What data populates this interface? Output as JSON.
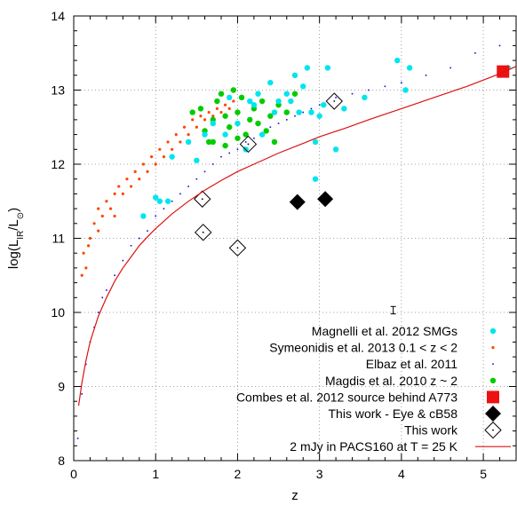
{
  "chart_data": {
    "type": "scatter",
    "xlabel": "z",
    "ylabel": {
      "main": "log(L",
      "sub": "IR",
      "mid": "/L",
      "sun": "⊙",
      "close": ")"
    },
    "xlim": [
      0,
      5.4
    ],
    "ylim": [
      8,
      14
    ],
    "x_ticks": [
      "0",
      "1",
      "2",
      "3",
      "4",
      "5"
    ],
    "y_ticks": [
      "8",
      "9",
      "10",
      "11",
      "12",
      "13",
      "14"
    ],
    "grid": true,
    "legend_position": "bottom-right",
    "series": [
      {
        "name": "Magnelli et al. 2012 SMGs",
        "marker": "circle",
        "color": "#00e5ee",
        "points": [
          [
            0.85,
            11.3
          ],
          [
            1.0,
            11.55
          ],
          [
            1.05,
            11.5
          ],
          [
            1.15,
            11.5
          ],
          [
            1.2,
            12.1
          ],
          [
            1.4,
            12.3
          ],
          [
            1.5,
            12.05
          ],
          [
            1.6,
            12.4
          ],
          [
            1.7,
            12.55
          ],
          [
            1.85,
            12.4
          ],
          [
            1.9,
            12.9
          ],
          [
            2.0,
            12.55
          ],
          [
            2.1,
            12.2
          ],
          [
            2.15,
            12.85
          ],
          [
            2.2,
            12.8
          ],
          [
            2.25,
            12.95
          ],
          [
            2.3,
            12.4
          ],
          [
            2.4,
            13.1
          ],
          [
            2.45,
            12.7
          ],
          [
            2.5,
            12.85
          ],
          [
            2.6,
            12.95
          ],
          [
            2.65,
            12.85
          ],
          [
            2.7,
            13.2
          ],
          [
            2.75,
            12.7
          ],
          [
            2.8,
            13.05
          ],
          [
            2.85,
            13.3
          ],
          [
            2.9,
            12.7
          ],
          [
            2.95,
            12.3
          ],
          [
            3.0,
            12.65
          ],
          [
            3.05,
            12.8
          ],
          [
            3.1,
            13.3
          ],
          [
            3.2,
            12.2
          ],
          [
            3.3,
            12.75
          ],
          [
            2.95,
            11.8
          ],
          [
            3.55,
            12.9
          ],
          [
            3.95,
            13.4
          ],
          [
            4.05,
            13.0
          ],
          [
            4.1,
            13.3
          ],
          [
            5.3,
            13.3
          ]
        ]
      },
      {
        "name": "Symeonidis et al. 2013 0.1 < z < 2",
        "marker": "small-dot",
        "color": "#ff4500",
        "points": [
          [
            0.1,
            10.5
          ],
          [
            0.12,
            10.8
          ],
          [
            0.15,
            10.6
          ],
          [
            0.18,
            10.9
          ],
          [
            0.2,
            11.0
          ],
          [
            0.25,
            11.2
          ],
          [
            0.3,
            11.1
          ],
          [
            0.3,
            11.4
          ],
          [
            0.35,
            11.3
          ],
          [
            0.4,
            11.5
          ],
          [
            0.45,
            11.4
          ],
          [
            0.5,
            11.6
          ],
          [
            0.5,
            11.3
          ],
          [
            0.55,
            11.7
          ],
          [
            0.6,
            11.6
          ],
          [
            0.65,
            11.8
          ],
          [
            0.7,
            11.7
          ],
          [
            0.75,
            11.9
          ],
          [
            0.8,
            11.8
          ],
          [
            0.85,
            12.0
          ],
          [
            0.9,
            11.9
          ],
          [
            0.95,
            12.1
          ],
          [
            1.0,
            12.0
          ],
          [
            1.05,
            12.2
          ],
          [
            1.1,
            12.1
          ],
          [
            1.15,
            12.3
          ],
          [
            1.2,
            12.2
          ],
          [
            1.25,
            12.4
          ],
          [
            1.3,
            12.3
          ],
          [
            1.35,
            12.5
          ],
          [
            1.4,
            12.4
          ],
          [
            1.45,
            12.6
          ],
          [
            1.5,
            12.5
          ],
          [
            1.55,
            12.65
          ],
          [
            1.6,
            12.6
          ],
          [
            1.65,
            12.7
          ],
          [
            1.7,
            12.65
          ],
          [
            1.75,
            12.75
          ],
          [
            1.8,
            12.7
          ],
          [
            1.85,
            12.8
          ],
          [
            1.9,
            12.75
          ],
          [
            1.95,
            12.85
          ]
        ]
      },
      {
        "name": "Elbaz et al. 2011",
        "marker": "tiny-dot",
        "color": "#1010cc",
        "points": [
          [
            0.05,
            8.3
          ],
          [
            0.1,
            8.9
          ],
          [
            0.15,
            9.3
          ],
          [
            0.2,
            9.6
          ],
          [
            0.25,
            9.8
          ],
          [
            0.3,
            10.0
          ],
          [
            0.35,
            10.2
          ],
          [
            0.4,
            10.3
          ],
          [
            0.5,
            10.5
          ],
          [
            0.6,
            10.7
          ],
          [
            0.7,
            10.9
          ],
          [
            0.8,
            11.0
          ],
          [
            0.9,
            11.1
          ],
          [
            1.0,
            11.3
          ],
          [
            1.1,
            11.4
          ],
          [
            1.2,
            11.5
          ],
          [
            1.3,
            11.6
          ],
          [
            1.4,
            11.7
          ],
          [
            1.5,
            11.8
          ],
          [
            1.6,
            11.9
          ],
          [
            1.7,
            12.0
          ],
          [
            1.8,
            12.1
          ],
          [
            1.9,
            12.15
          ],
          [
            2.0,
            12.2
          ],
          [
            2.1,
            12.3
          ],
          [
            2.2,
            12.35
          ],
          [
            2.3,
            12.4
          ],
          [
            2.4,
            12.5
          ],
          [
            2.5,
            12.55
          ],
          [
            2.6,
            12.6
          ],
          [
            2.7,
            12.65
          ],
          [
            2.8,
            12.7
          ],
          [
            2.9,
            12.75
          ],
          [
            3.0,
            12.8
          ],
          [
            3.2,
            12.9
          ],
          [
            3.4,
            12.95
          ],
          [
            3.6,
            13.0
          ],
          [
            3.8,
            13.05
          ],
          [
            4.0,
            13.1
          ],
          [
            4.3,
            13.2
          ],
          [
            4.6,
            13.3
          ],
          [
            4.9,
            13.5
          ],
          [
            5.2,
            13.6
          ]
        ]
      },
      {
        "name": "Magdis et al. 2010 z ~ 2",
        "marker": "circle",
        "color": "#00cc00",
        "points": [
          [
            1.45,
            12.7
          ],
          [
            1.55,
            12.75
          ],
          [
            1.6,
            12.45
          ],
          [
            1.65,
            12.3
          ],
          [
            1.7,
            12.6
          ],
          [
            1.75,
            12.85
          ],
          [
            1.8,
            12.95
          ],
          [
            1.85,
            12.65
          ],
          [
            1.9,
            12.5
          ],
          [
            1.95,
            13.0
          ],
          [
            2.0,
            12.7
          ],
          [
            2.05,
            12.9
          ],
          [
            2.1,
            12.4
          ],
          [
            2.15,
            12.6
          ],
          [
            2.2,
            12.75
          ],
          [
            2.25,
            12.55
          ],
          [
            2.3,
            12.85
          ],
          [
            2.35,
            12.45
          ],
          [
            2.4,
            12.65
          ],
          [
            2.45,
            12.3
          ],
          [
            2.5,
            12.8
          ],
          [
            1.7,
            12.3
          ],
          [
            1.85,
            12.25
          ],
          [
            2.0,
            12.35
          ],
          [
            2.6,
            12.7
          ],
          [
            2.7,
            12.95
          ]
        ]
      },
      {
        "name": "Combes et al. 2012 source behind A773",
        "marker": "square",
        "color": "#ee1111",
        "points": [
          [
            5.24,
            13.25
          ]
        ]
      },
      {
        "name": "This work - Eye & cB58",
        "marker": "diamond-filled",
        "color": "#000000",
        "points": [
          [
            2.73,
            11.49
          ],
          [
            3.07,
            11.53
          ]
        ]
      },
      {
        "name": "This work",
        "marker": "diamond-open",
        "color": "#000000",
        "points": [
          [
            1.57,
            11.53
          ],
          [
            1.58,
            11.08
          ],
          [
            2.0,
            10.87
          ],
          [
            2.13,
            12.27
          ],
          [
            3.18,
            12.85
          ]
        ]
      }
    ],
    "curve": {
      "name": "2 mJy in PACS160 at T = 25 K",
      "color": "#dd1111",
      "points": [
        [
          0.06,
          8.74
        ],
        [
          0.1,
          9.05
        ],
        [
          0.15,
          9.35
        ],
        [
          0.2,
          9.6
        ],
        [
          0.3,
          9.95
        ],
        [
          0.4,
          10.2
        ],
        [
          0.5,
          10.42
        ],
        [
          0.6,
          10.6
        ],
        [
          0.7,
          10.75
        ],
        [
          0.8,
          10.9
        ],
        [
          0.9,
          11.02
        ],
        [
          1.0,
          11.13
        ],
        [
          1.2,
          11.33
        ],
        [
          1.4,
          11.5
        ],
        [
          1.6,
          11.65
        ],
        [
          1.8,
          11.78
        ],
        [
          2.0,
          11.9
        ],
        [
          2.2,
          12.0
        ],
        [
          2.5,
          12.15
        ],
        [
          2.8,
          12.28
        ],
        [
          3.0,
          12.37
        ],
        [
          3.3,
          12.48
        ],
        [
          3.6,
          12.6
        ],
        [
          4.0,
          12.75
        ],
        [
          4.4,
          12.9
        ],
        [
          4.8,
          13.05
        ],
        [
          5.2,
          13.22
        ],
        [
          5.4,
          13.32
        ]
      ]
    },
    "error_bar": {
      "x": 3.9,
      "y": 10.03,
      "yerr": 0.05
    }
  }
}
